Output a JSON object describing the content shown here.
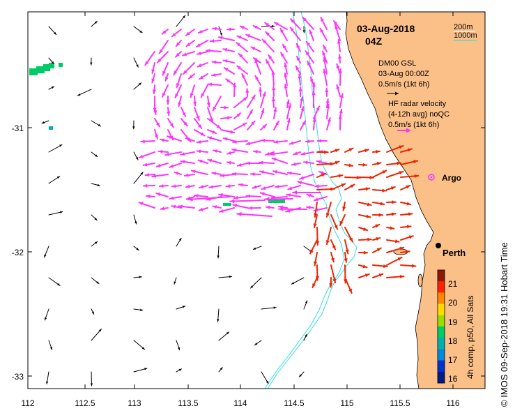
{
  "map": {
    "date_title": "03-Aug-2018",
    "time_title": "04Z",
    "scale_labels": [
      "200m",
      "1000m"
    ],
    "scale_colors": [
      "#ffffff",
      "#33dddd"
    ],
    "model_legend": [
      "DM00 GSL",
      "03-Aug 00:00Z",
      "0.5m/s (1kt 6h)"
    ],
    "radar_legend": [
      "HF radar velocity",
      "(4-12h avg) noQC",
      "0.5m/s (1kt 6h)"
    ],
    "locations": [
      {
        "name": "Argo",
        "lon": 115.82,
        "lat": -31.41,
        "marker": "argo-float-icon"
      },
      {
        "name": "Perth",
        "lon": 115.87,
        "lat": -31.95,
        "marker": "city-dot-icon"
      }
    ],
    "lon_ticks": [
      "112",
      "112.5",
      "113",
      "113.5",
      "114",
      "114.5",
      "115",
      "115.5",
      "116"
    ],
    "lat_ticks": [
      "-31",
      "-32",
      "-33"
    ],
    "lon_range": [
      112,
      116.3
    ],
    "lat_range": [
      -33.1,
      -30.15
    ],
    "colorbar": {
      "label": "4h comp, p50, All Sats",
      "ticks": [
        "21",
        "20",
        "19",
        "18",
        "17",
        "16"
      ],
      "range": [
        15.7,
        21.4
      ],
      "colors": [
        "#8b1a00",
        "#ff2200",
        "#ff8800",
        "#ffdd00",
        "#99dd00",
        "#00cc66",
        "#00b0b0",
        "#0088dd",
        "#0033cc",
        "#001a88"
      ]
    },
    "credit": "© IMOS 09-Sep-2018 19:31 Hobart Time",
    "colors": {
      "land": "#fbbf88",
      "model_arrows": "#000000",
      "radar_arrows": "#ff33ff",
      "red_arrows": "#ee2200",
      "isobath": "#33dddd",
      "sst_patch": "#00cc66"
    }
  }
}
